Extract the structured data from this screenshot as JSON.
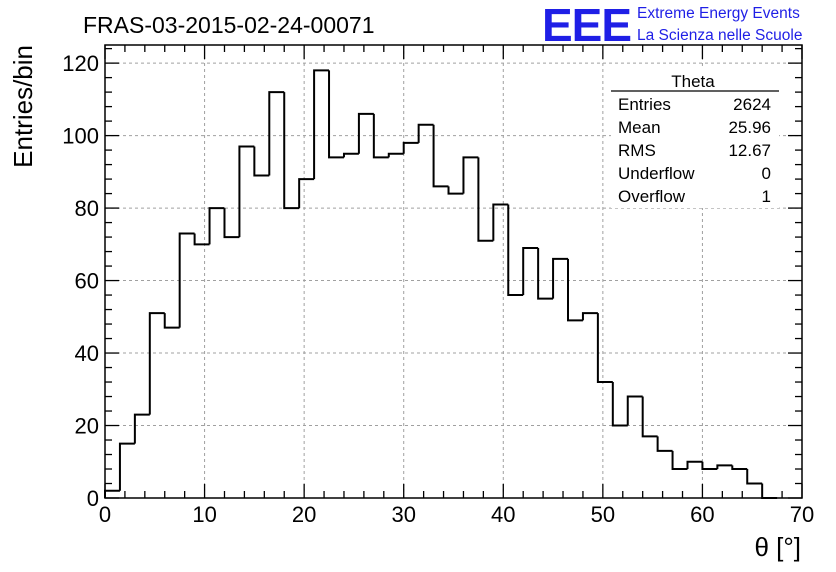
{
  "header": {
    "run_title": "FRAS-03-2015-02-24-00071",
    "logo_letters": "EEE",
    "logo_line1": "Extreme Energy Events",
    "logo_line2": "La Scienza nelle Scuole"
  },
  "stats": {
    "name": "Theta",
    "rows": [
      {
        "label": "Entries",
        "value": "2624"
      },
      {
        "label": "Mean",
        "value": "25.96"
      },
      {
        "label": "RMS",
        "value": "12.67"
      },
      {
        "label": "Underflow",
        "value": "0"
      },
      {
        "label": "Overflow",
        "value": "1"
      }
    ]
  },
  "chart_data": {
    "type": "bar",
    "histogram": true,
    "title": "FRAS-03-2015-02-24-00071",
    "xlabel": "θ [°]",
    "ylabel": "Entries/bin",
    "xlim": [
      0,
      70
    ],
    "ylim": [
      0,
      125
    ],
    "bin_width": 1.5,
    "bin_edges_start": 0,
    "x_ticks": [
      0,
      10,
      20,
      30,
      40,
      50,
      60,
      70
    ],
    "y_ticks": [
      0,
      20,
      40,
      60,
      80,
      100,
      120
    ],
    "grid": true,
    "line_color": "#000000",
    "values": [
      2,
      15,
      23,
      51,
      47,
      73,
      70,
      80,
      72,
      97,
      89,
      112,
      80,
      88,
      118,
      94,
      95,
      106,
      94,
      95,
      98,
      103,
      86,
      84,
      94,
      71,
      81,
      56,
      69,
      55,
      66,
      49,
      51,
      32,
      20,
      28,
      17,
      13,
      8,
      10,
      8,
      9,
      8,
      4,
      0
    ]
  }
}
